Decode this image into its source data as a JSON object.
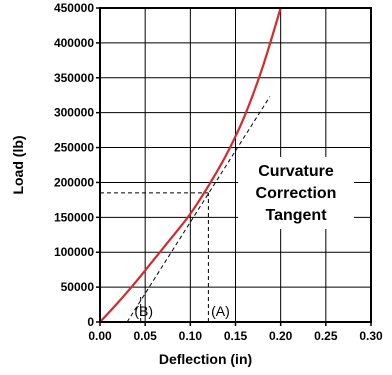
{
  "chart_data": {
    "type": "line",
    "title": "",
    "xlabel": "Deflection (in)",
    "ylabel": "Load (lb)",
    "xlim": [
      0,
      0.3
    ],
    "ylim": [
      0,
      450000
    ],
    "x_ticks": [
      0,
      0.05,
      0.1,
      0.15,
      0.2,
      0.25,
      0.3
    ],
    "x_tick_labels": [
      "0.00",
      "0.05",
      "0.10",
      "0.15",
      "0.20",
      "0.25",
      "0.30"
    ],
    "y_ticks": [
      0,
      50000,
      100000,
      150000,
      200000,
      250000,
      300000,
      350000,
      400000,
      450000
    ],
    "y_tick_labels": [
      "0",
      "50000",
      "100000",
      "150000",
      "200000",
      "250000",
      "300000",
      "350000",
      "400000",
      "450000"
    ],
    "grid": true,
    "series": [
      {
        "color": "#d42a2a",
        "x": [
          0,
          0.02,
          0.04,
          0.06,
          0.08,
          0.1,
          0.12,
          0.14,
          0.16,
          0.18,
          0.2
        ],
        "y": [
          0,
          28000,
          58000,
          90000,
          122000,
          155000,
          195000,
          240000,
          295000,
          365000,
          450000
        ]
      }
    ],
    "tangent": {
      "x": [
        0.03,
        0.188
      ],
      "y": [
        0,
        323000
      ]
    },
    "reference_lines": {
      "horizontal": {
        "y": 185000,
        "x_end": 0.12
      },
      "vertical_A": {
        "x": 0.12,
        "y_end": 185000
      },
      "vertical_B": {
        "x": 0.045,
        "y_end": 40000
      }
    },
    "annotations": {
      "label_line1": "Curvature",
      "label_line2": "Correction",
      "label_line3": "Tangent",
      "marker_b": "(B)",
      "marker_a": "(A)"
    }
  }
}
